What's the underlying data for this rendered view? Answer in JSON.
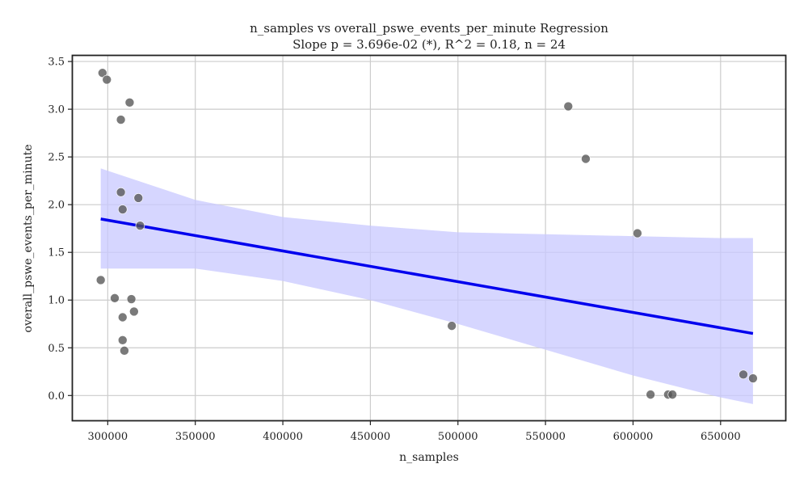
{
  "chart_data": {
    "type": "scatter",
    "title": "n_samples vs overall_pswe_events_per_minute Regression",
    "subtitle": "Slope p = 3.696e-02 (*), R^2 = 0.18, n = 24",
    "xlabel": "n_samples",
    "ylabel": "overall_pswe_events_per_minute",
    "xlim": [
      280000,
      687000
    ],
    "ylim": [
      -0.26,
      3.56
    ],
    "xticks": [
      300000,
      350000,
      400000,
      450000,
      500000,
      550000,
      600000,
      650000
    ],
    "yticks": [
      0.0,
      0.5,
      1.0,
      1.5,
      2.0,
      2.5,
      3.0,
      3.5
    ],
    "ytick_labels": [
      "0.0",
      "0.5",
      "1.0",
      "1.5",
      "2.0",
      "2.5",
      "3.0",
      "3.5"
    ],
    "grid": true,
    "colors": {
      "points": "#555555",
      "regression_line": "#0000ee",
      "confidence_band": "#c8c8ff"
    },
    "points": [
      {
        "x": 297000,
        "y": 3.38
      },
      {
        "x": 299500,
        "y": 3.31
      },
      {
        "x": 312500,
        "y": 3.07
      },
      {
        "x": 307500,
        "y": 2.89
      },
      {
        "x": 307500,
        "y": 2.13
      },
      {
        "x": 317500,
        "y": 2.07
      },
      {
        "x": 308500,
        "y": 1.95
      },
      {
        "x": 318500,
        "y": 1.78
      },
      {
        "x": 296000,
        "y": 1.21
      },
      {
        "x": 304000,
        "y": 1.02
      },
      {
        "x": 313500,
        "y": 1.01
      },
      {
        "x": 315000,
        "y": 0.88
      },
      {
        "x": 308500,
        "y": 0.82
      },
      {
        "x": 308500,
        "y": 0.58
      },
      {
        "x": 309500,
        "y": 0.47
      },
      {
        "x": 496500,
        "y": 0.73
      },
      {
        "x": 563000,
        "y": 3.03
      },
      {
        "x": 573000,
        "y": 2.48
      },
      {
        "x": 602500,
        "y": 1.7
      },
      {
        "x": 610000,
        "y": 0.01
      },
      {
        "x": 620000,
        "y": 0.01
      },
      {
        "x": 622500,
        "y": 0.01
      },
      {
        "x": 663000,
        "y": 0.22
      },
      {
        "x": 668500,
        "y": 0.18
      }
    ],
    "regression": {
      "x": [
        296000,
        668500
      ],
      "y": [
        1.85,
        0.65
      ]
    },
    "confidence_band": {
      "x": [
        296000,
        350000,
        400000,
        450000,
        500000,
        550000,
        600000,
        650000,
        668500
      ],
      "upper": [
        2.38,
        2.05,
        1.87,
        1.78,
        1.71,
        1.69,
        1.67,
        1.65,
        1.65
      ],
      "lower": [
        1.33,
        1.33,
        1.2,
        1.0,
        0.75,
        0.48,
        0.21,
        -0.02,
        -0.09
      ]
    }
  }
}
